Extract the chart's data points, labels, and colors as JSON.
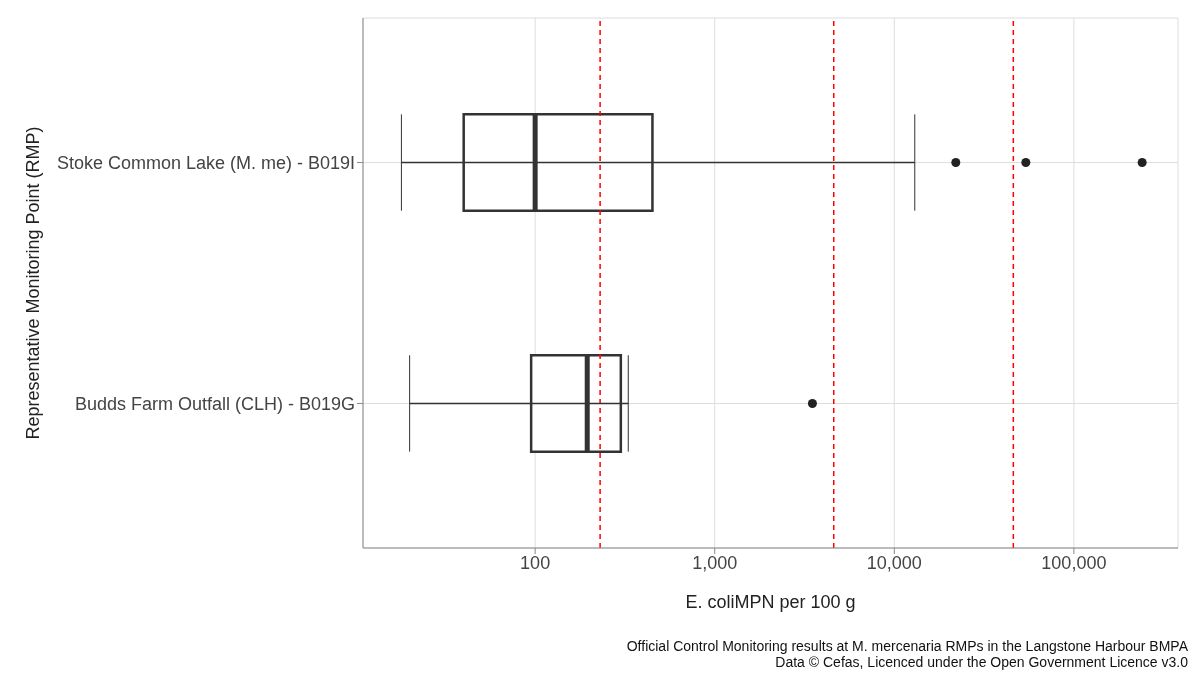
{
  "chart_data": {
    "type": "box",
    "orientation": "horizontal",
    "log": "x",
    "grid": true,
    "color": "#ffffff",
    "categories": [
      "Stoke Common Lake (M. me) - B019I",
      "Budds Farm Outfall (CLH) - B019G"
    ],
    "boxes": [
      {
        "low": 18,
        "q1": 40,
        "median": 100,
        "q3": 450,
        "high": 13000,
        "outliers": [
          22000,
          54000,
          240000
        ]
      },
      {
        "low": 20,
        "q1": 95,
        "median": 195,
        "q3": 300,
        "high": 330,
        "outliers": [
          3500
        ]
      }
    ],
    "xlim": [
      11,
      380000
    ],
    "xticks": [
      {
        "value": 100,
        "label": "100"
      },
      {
        "value": 1000,
        "label": "1,000"
      },
      {
        "value": 10000,
        "label": "10,000"
      },
      {
        "value": 100000,
        "label": "100,000"
      }
    ],
    "xlabel": "E. coliMPN per 100 g",
    "ylabel": "Representative Monitoring Point (RMP)",
    "ref_lines": [
      {
        "axis": "x",
        "value": 230,
        "color": "#ff0000",
        "line_style": "dashed"
      },
      {
        "axis": "x",
        "value": 4600,
        "color": "#ff0000",
        "line_style": "dashed"
      },
      {
        "axis": "x",
        "value": 46000,
        "color": "#ff0000",
        "line_style": "dashed"
      }
    ],
    "annotations": [
      "Official Control Monitoring results at M. mercenaria RMPs in the Langstone Harbour BMPA",
      "Data © Cefas, Licenced under the Open Government Licence v3.0"
    ]
  }
}
